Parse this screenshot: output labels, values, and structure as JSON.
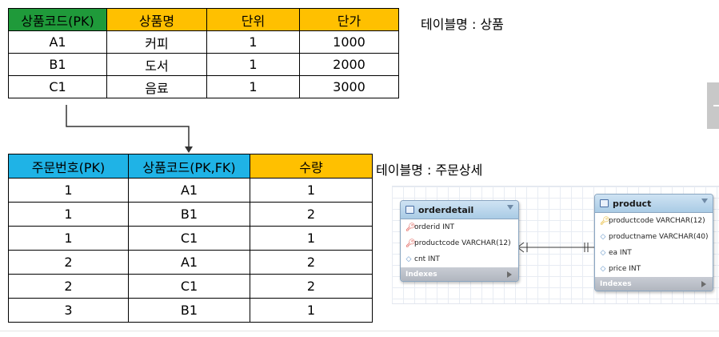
{
  "product_table": {
    "caption": "테이블명 : 상품",
    "headers": [
      "상품코드(PK)",
      "상품명",
      "단위",
      "단가"
    ],
    "header_colors": [
      "#1f9a3a",
      "#ffc000",
      "#ffc000",
      "#ffc000"
    ],
    "rows": [
      [
        "A1",
        "커피",
        "1",
        "1000"
      ],
      [
        "B1",
        "도서",
        "1",
        "2000"
      ],
      [
        "C1",
        "음료",
        "1",
        "3000"
      ]
    ]
  },
  "orderdetail_table": {
    "caption": "테이블명 : 주문상세",
    "headers": [
      "주문번호(PK)",
      "상품코드(PK,FK)",
      "수량"
    ],
    "header_colors": [
      "#1fb3e6",
      "#1fb3e6",
      "#ffc000"
    ],
    "rows": [
      [
        "1",
        "A1",
        "1"
      ],
      [
        "1",
        "B1",
        "2"
      ],
      [
        "1",
        "C1",
        "1"
      ],
      [
        "2",
        "A1",
        "2"
      ],
      [
        "2",
        "C1",
        "2"
      ],
      [
        "3",
        "B1",
        "1"
      ]
    ]
  },
  "er_diagram": {
    "orderdetail": {
      "name": "orderdetail",
      "columns": [
        {
          "text": "orderid INT",
          "icon": "primary-key-icon"
        },
        {
          "text": "productcode VARCHAR(12)",
          "icon": "primary-key-icon"
        },
        {
          "text": "cnt INT",
          "icon": "column-diamond-icon"
        }
      ],
      "indexes_label": "Indexes"
    },
    "product": {
      "name": "product",
      "columns": [
        {
          "text": "productcode VARCHAR(12)",
          "icon": "primary-key-icon"
        },
        {
          "text": "productname VARCHAR(40)",
          "icon": "column-diamond-icon"
        },
        {
          "text": "ea INT",
          "icon": "column-diamond-icon"
        },
        {
          "text": "price INT",
          "icon": "column-diamond-icon"
        }
      ],
      "indexes_label": "Indexes"
    }
  }
}
